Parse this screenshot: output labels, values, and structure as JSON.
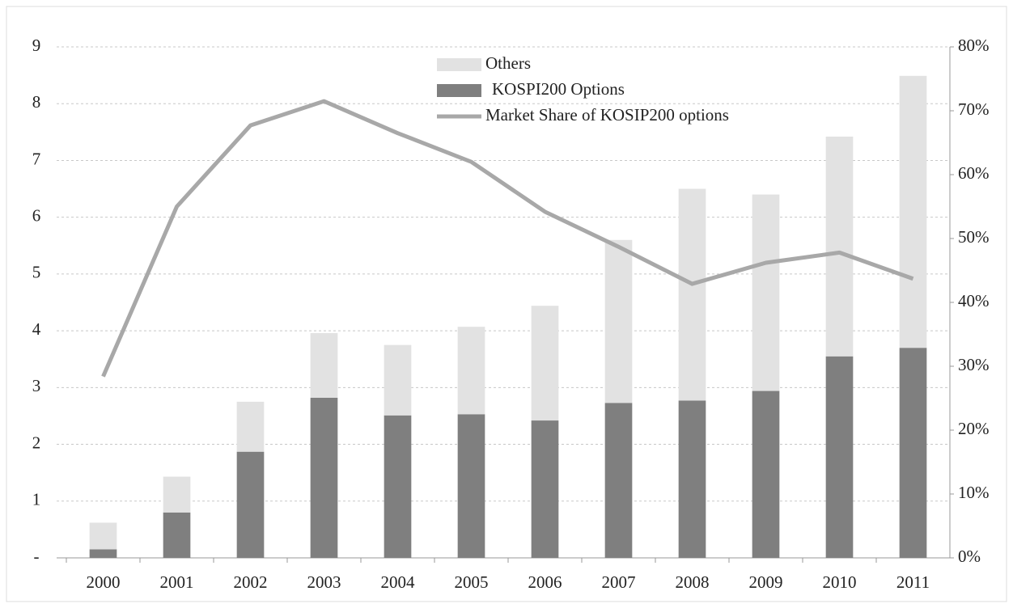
{
  "chart_data": {
    "type": "combo",
    "categories": [
      "2000",
      "2001",
      "2002",
      "2003",
      "2004",
      "2005",
      "2006",
      "2007",
      "2008",
      "2009",
      "2010",
      "2011"
    ],
    "series": [
      {
        "name": "Others",
        "type": "bar",
        "color": "#e2e2e2",
        "values": [
          0.47,
          0.63,
          0.88,
          1.14,
          1.24,
          1.54,
          2.02,
          2.87,
          3.73,
          3.46,
          3.87,
          4.79
        ]
      },
      {
        "name": "KOSPI200 Options",
        "type": "bar",
        "color": "#7f7f7f",
        "values": [
          0.15,
          0.8,
          1.87,
          2.82,
          2.51,
          2.53,
          2.42,
          2.73,
          2.77,
          2.94,
          3.55,
          3.7
        ]
      },
      {
        "name": "Market Share of KOSIP200 options",
        "type": "line",
        "axis": "y2",
        "color": "#a8a8a8",
        "values": [
          28.4,
          55,
          67.7,
          71.5,
          66.5,
          62,
          54.2,
          48.7,
          42.9,
          46.2,
          47.8,
          43.7
        ]
      }
    ],
    "ylim": [
      0,
      9
    ],
    "yticks": [
      {
        "value": 0,
        "label": "-"
      },
      1,
      2,
      3,
      4,
      5,
      6,
      7,
      8,
      9
    ],
    "y2lim": [
      0,
      80
    ],
    "y2ticks": [
      {
        "value": 0,
        "label": "0%"
      },
      {
        "value": 10,
        "label": "10%"
      },
      {
        "value": 20,
        "label": "20%"
      },
      {
        "value": 30,
        "label": "30%"
      },
      {
        "value": 40,
        "label": "40%"
      },
      {
        "value": 50,
        "label": "50%"
      },
      {
        "value": 60,
        "label": "60%"
      },
      {
        "value": 70,
        "label": "70%"
      },
      {
        "value": 80,
        "label": "80%"
      }
    ],
    "grid": true
  }
}
